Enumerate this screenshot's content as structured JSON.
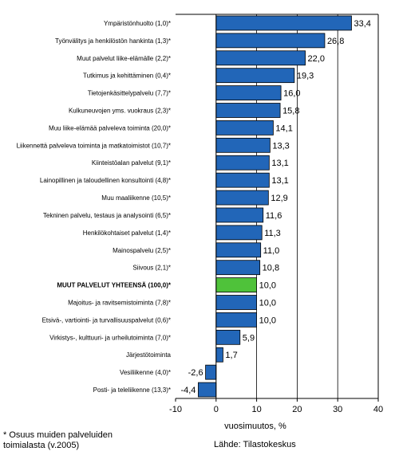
{
  "chart_data": {
    "type": "bar",
    "orientation": "horizontal",
    "title": "",
    "xlabel": "vuosimuutos, %",
    "ylabel": "",
    "xlim": [
      -10,
      40
    ],
    "xticks": [
      -10,
      0,
      10,
      20,
      30,
      40
    ],
    "grid": true,
    "categories": [
      "Ympäristönhuolto (1,0)*",
      "Työnvälitys ja henkilöstön hankinta (1,3)*",
      "Muut palvelut liike-elämälle (2,2)*",
      "Tutkimus ja kehittäminen (0,4)*",
      "Tietojenkäsittelypalvelu (7,7)*",
      "Kulkuneuvojen yms. vuokraus (2,3)*",
      "Muu liike-elämää palveleva toiminta (20,0)*",
      "Liikennettä palveleva toiminta ja matkatoimistot (10,7)*",
      "Kiinteistöalan palvelut (9,1)*",
      "Lainopillinen ja taloudellinen konsultointi (4,8)*",
      "Muu maaliikenne (10,5)*",
      "Tekninen palvelu, testaus ja analysointi (6,5)*",
      "Henkilökohtaiset palvelut (1,4)*",
      "Mainospalvelu (2,5)*",
      "Siivous (2,1)*",
      "MUUT PALVELUT YHTEENSÄ (100,0)*",
      "Majoitus- ja ravitsemistoiminta (7,8)*",
      "Etsivä-, vartiointi- ja turvallisuuspalvelut (0,6)*",
      "Virkistys-, kulttuuri- ja urheilutoiminta (7,0)*",
      "Järjestötoiminta",
      "Vesiliikenne (4,0)*",
      "Posti- ja teleliikenne (13,3)*"
    ],
    "values": [
      33.4,
      26.8,
      22.0,
      19.3,
      16.0,
      15.8,
      14.1,
      13.3,
      13.1,
      13.1,
      12.9,
      11.6,
      11.3,
      11.0,
      10.8,
      10.0,
      10.0,
      10.0,
      5.9,
      1.7,
      -2.6,
      -4.4
    ],
    "value_labels": [
      "33,4",
      "26,8",
      "22,0",
      "19,3",
      "16,0",
      "15,8",
      "14,1",
      "13,3",
      "13,1",
      "13,1",
      "12,9",
      "11,6",
      "11,3",
      "11,0",
      "10,8",
      "10,0",
      "10,0",
      "10,0",
      "5,9",
      "1,7",
      "-2,6",
      "-4,4"
    ],
    "highlight_index": 15,
    "colors": {
      "bar": "#2266b8",
      "highlight": "#4fc23a",
      "bar_edge": "#000000",
      "axis": "#000000",
      "grid": "#000000"
    }
  },
  "footnote": "* Osuus muiden palveluiden toimialasta (v.2005)",
  "source": "Lähde: Tilastokeskus"
}
